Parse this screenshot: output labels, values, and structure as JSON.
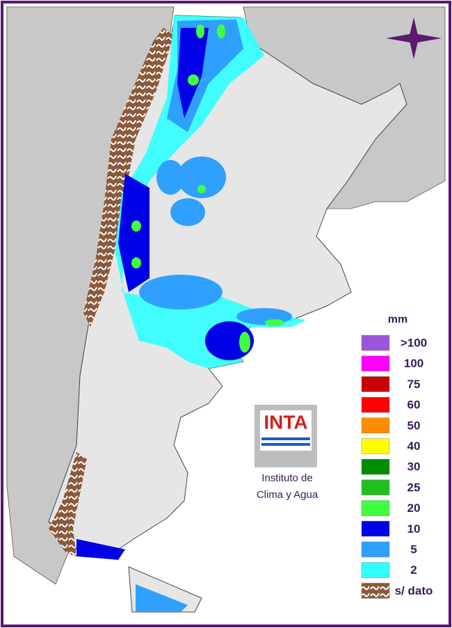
{
  "legend": {
    "title": "mm",
    "items": [
      {
        "label": ">100",
        "color": "#9b55d8"
      },
      {
        "label": "100",
        "color": "#ff00ff"
      },
      {
        "label": "75",
        "color": "#c80000"
      },
      {
        "label": "60",
        "color": "#ff0000"
      },
      {
        "label": "50",
        "color": "#ff8c00"
      },
      {
        "label": "40",
        "color": "#ffff00"
      },
      {
        "label": "30",
        "color": "#008c00"
      },
      {
        "label": "25",
        "color": "#20c020"
      },
      {
        "label": "20",
        "color": "#40ff40"
      },
      {
        "label": "10",
        "color": "#0000e6"
      },
      {
        "label": "5",
        "color": "#30a0ff"
      },
      {
        "label": "2",
        "color": "#30ffff"
      },
      {
        "label": "s/ dato",
        "color": "#8b5a3c",
        "pattern": true
      }
    ]
  },
  "logo": {
    "text": "INTA",
    "caption": [
      "Instituto de",
      "Clima y Agua"
    ]
  }
}
